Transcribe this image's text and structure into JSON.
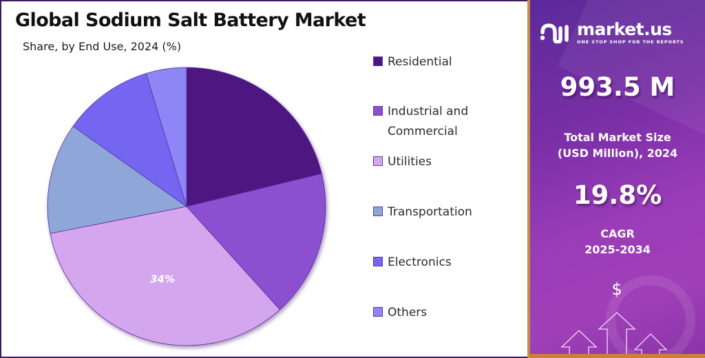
{
  "header": {
    "title": "Global Sodium Salt Battery Market",
    "subtitle": "Share, by End Use, 2024 (%)"
  },
  "chart_data": {
    "type": "pie",
    "title": "Global Sodium Salt Battery Market",
    "subtitle": "Share, by End Use, 2024 (%)",
    "categories": [
      "Residential",
      "Industrial and Commercial",
      "Utilities",
      "Transportation",
      "Electronics",
      "Others"
    ],
    "values": [
      21.2,
      17.1,
      33.6,
      12.9,
      10.5,
      4.7
    ],
    "colors": [
      "#4e1580",
      "#8b4fcf",
      "#d3a6ee",
      "#8fa7d8",
      "#7566f2",
      "#8e85f7"
    ],
    "data_labels": [
      {
        "category": "Utilities",
        "text": "34%"
      }
    ],
    "start_angle_deg": 0,
    "direction": "clockwise",
    "legend_position": "right"
  },
  "legend": {
    "items": [
      {
        "label_line1": "Residential",
        "label_line2": "",
        "color": "#4e1580"
      },
      {
        "label_line1": "Industrial and",
        "label_line2": "Commercial",
        "color": "#8b4fcf"
      },
      {
        "label_line1": "Utilities",
        "label_line2": "",
        "color": "#d3a6ee"
      },
      {
        "label_line1": "Transportation",
        "label_line2": "",
        "color": "#8fa7d8"
      },
      {
        "label_line1": "Electronics",
        "label_line2": "",
        "color": "#7566f2"
      },
      {
        "label_line1": "Others",
        "label_line2": "",
        "color": "#8e85f7"
      }
    ]
  },
  "sidebar": {
    "logo_name": "market.us",
    "logo_tagline": "ONE STOP SHOP FOR THE REPORTS",
    "market_size_value": "993.5 M",
    "market_size_label_line1": "Total Market Size",
    "market_size_label_line2": "(USD Million), 2024",
    "cagr_value": "19.8%",
    "cagr_label_line1": "CAGR",
    "cagr_label_line2": "2025-2034",
    "growth_icon_symbol": "$"
  }
}
